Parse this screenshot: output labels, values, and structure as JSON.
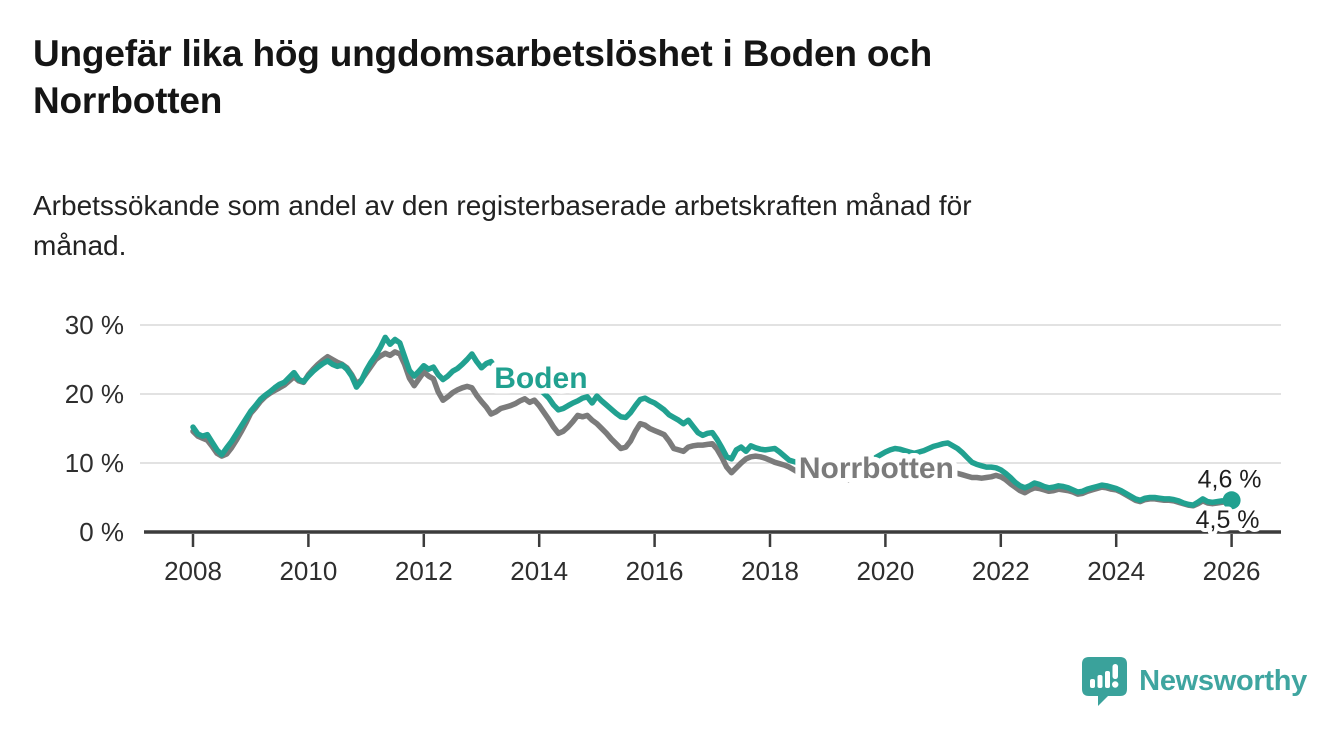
{
  "header": {
    "title_lines": [
      "Ungefär lika hög ungdomsarbetslöshet i Boden och",
      "Norrbotten"
    ],
    "subtitle_lines": [
      "Arbetssökande som andel av den registerbaserade arbetskraften månad för",
      "månad."
    ]
  },
  "chart_data": {
    "type": "line",
    "x_unit": "month",
    "x_start": 2008.0,
    "x_end": 2026.0,
    "xlim": [
      2007.1,
      2026.85
    ],
    "ylim": [
      0,
      31.5
    ],
    "grid": "horizontal-light",
    "x_ticks": [
      2008,
      2010,
      2012,
      2014,
      2016,
      2018,
      2020,
      2022,
      2024,
      2026
    ],
    "x_ticklabels": [
      "2008",
      "2010",
      "2012",
      "2014",
      "2016",
      "2018",
      "2020",
      "2022",
      "2024",
      "2026"
    ],
    "y_ticks": [
      0,
      10,
      20,
      30
    ],
    "y_ticklabels": [
      "0 %",
      "10 %",
      "20 %",
      "30 %"
    ],
    "colors": {
      "boden": "#21a190",
      "norrbotten": "#7b7b7b",
      "axis": "#3c3c3c",
      "gridline": "#d8d8d8",
      "end_label_text": "#1f1f1f"
    },
    "series": [
      {
        "name": "Norrbotten",
        "color": "#7b7b7b",
        "label": {
          "text": "Norrbotten",
          "x": 2018.5,
          "y": 7.8
        },
        "end_label": "4,5 %",
        "end_label_side": "below",
        "end_dot": false,
        "values": [
          14.6,
          13.9,
          13.6,
          13.3,
          12.4,
          11.4,
          11.0,
          11.3,
          12.2,
          13.3,
          14.5,
          15.8,
          17.2,
          18.0,
          18.9,
          19.6,
          20.1,
          20.5,
          20.9,
          21.3,
          21.9,
          22.5,
          21.9,
          21.7,
          22.8,
          23.6,
          24.3,
          24.9,
          25.4,
          25.0,
          24.6,
          24.3,
          23.8,
          22.8,
          21.5,
          22.0,
          23.0,
          24.0,
          25.0,
          25.5,
          25.9,
          25.6,
          26.1,
          25.8,
          24.3,
          22.3,
          21.2,
          22.2,
          23.2,
          22.6,
          22.2,
          20.3,
          19.1,
          19.6,
          20.2,
          20.6,
          20.9,
          21.1,
          20.9,
          19.8,
          18.9,
          18.1,
          17.1,
          17.4,
          17.9,
          18.1,
          18.3,
          18.6,
          19.0,
          19.3,
          18.8,
          19.1,
          18.3,
          17.3,
          16.3,
          15.2,
          14.3,
          14.6,
          15.2,
          16.0,
          16.9,
          16.7,
          16.9,
          16.2,
          15.7,
          15.0,
          14.3,
          13.5,
          12.8,
          12.1,
          12.3,
          13.2,
          14.6,
          15.7,
          15.5,
          15.0,
          14.7,
          14.4,
          14.1,
          13.2,
          12.1,
          11.9,
          11.7,
          12.3,
          12.5,
          12.6,
          12.6,
          12.7,
          12.8,
          12.0,
          10.8,
          9.4,
          8.6,
          9.3,
          10.0,
          10.6,
          10.9,
          11.0,
          10.9,
          10.7,
          10.4,
          10.1,
          9.9,
          9.7,
          9.4,
          9.0,
          8.6,
          8.4,
          8.3,
          8.2,
          8.1,
          8.0,
          7.9,
          7.8,
          7.8,
          7.7,
          7.5,
          7.7,
          7.9,
          7.8,
          7.8,
          7.9,
          8.0,
          8.1,
          8.3,
          8.5,
          8.8,
          9.0,
          8.9,
          8.8,
          8.7,
          8.6,
          8.6,
          8.7,
          8.8,
          8.9,
          9.0,
          8.9,
          8.7,
          8.5,
          8.3,
          8.1,
          7.9,
          7.9,
          7.8,
          7.9,
          8.0,
          8.2,
          8.0,
          7.6,
          7.0,
          6.5,
          6.0,
          5.7,
          6.1,
          6.4,
          6.3,
          6.1,
          5.9,
          6.0,
          6.2,
          6.1,
          6.0,
          5.8,
          5.5,
          5.6,
          5.9,
          6.1,
          6.3,
          6.5,
          6.4,
          6.2,
          6.1,
          5.8,
          5.4,
          5.0,
          4.6,
          4.4,
          4.7,
          4.8,
          4.8,
          4.7,
          4.6,
          4.6,
          4.5,
          4.3,
          4.1,
          3.9,
          3.8,
          4.1,
          4.5,
          4.2,
          4.1,
          4.2,
          4.3,
          4.4,
          4.5
        ]
      },
      {
        "name": "Boden",
        "color": "#21a190",
        "label": {
          "text": "Boden",
          "x": 2013.22,
          "y": 20.9
        },
        "end_label": "4,6 %",
        "end_label_side": "above",
        "end_dot": true,
        "values": [
          15.2,
          14.2,
          13.9,
          14.1,
          13.0,
          11.9,
          11.2,
          12.2,
          13.1,
          14.2,
          15.3,
          16.4,
          17.5,
          18.3,
          19.2,
          19.8,
          20.3,
          20.9,
          21.4,
          21.7,
          22.4,
          23.1,
          22.1,
          21.8,
          22.6,
          23.3,
          23.9,
          24.4,
          24.8,
          24.3,
          24.0,
          24.2,
          23.6,
          22.6,
          21.0,
          21.9,
          23.4,
          24.6,
          25.6,
          26.8,
          28.2,
          27.2,
          27.9,
          27.4,
          25.4,
          23.4,
          22.6,
          23.3,
          24.1,
          23.6,
          23.9,
          22.8,
          22.1,
          22.6,
          23.3,
          23.7,
          24.3,
          25.0,
          25.8,
          24.7,
          23.8,
          24.4,
          24.7,
          23.6,
          22.4,
          21.6,
          21.0,
          21.5,
          21.9,
          22.2,
          21.8,
          21.2,
          20.8,
          20.1,
          19.4,
          18.4,
          17.7,
          17.9,
          18.3,
          18.7,
          19.0,
          19.4,
          19.6,
          18.7,
          19.7,
          19.0,
          18.4,
          17.8,
          17.2,
          16.7,
          16.6,
          17.3,
          18.3,
          19.2,
          19.4,
          19.0,
          18.7,
          18.2,
          17.7,
          17.0,
          16.6,
          16.2,
          15.7,
          16.2,
          15.3,
          14.4,
          14.0,
          14.3,
          14.4,
          13.4,
          12.2,
          10.9,
          10.6,
          11.9,
          12.3,
          11.7,
          12.5,
          12.2,
          12.0,
          11.9,
          12.0,
          12.1,
          11.6,
          11.0,
          10.4,
          10.2,
          10.0,
          10.3,
          10.5,
          10.6,
          10.4,
          10.2,
          10.4,
          10.2,
          9.9,
          9.6,
          9.3,
          9.6,
          9.9,
          10.1,
          10.3,
          10.5,
          10.8,
          11.2,
          11.6,
          11.9,
          12.1,
          12.0,
          11.8,
          11.6,
          11.4,
          11.6,
          11.8,
          12.1,
          12.4,
          12.6,
          12.8,
          12.9,
          12.5,
          12.1,
          11.5,
          10.8,
          10.1,
          9.8,
          9.6,
          9.4,
          9.4,
          9.3,
          9.0,
          8.5,
          7.9,
          7.2,
          6.7,
          6.4,
          6.7,
          7.1,
          6.9,
          6.6,
          6.4,
          6.5,
          6.7,
          6.6,
          6.4,
          6.1,
          5.8,
          5.9,
          6.2,
          6.4,
          6.6,
          6.8,
          6.7,
          6.5,
          6.3,
          6.0,
          5.6,
          5.2,
          4.8,
          4.6,
          4.9,
          5.0,
          5.0,
          4.9,
          4.8,
          4.8,
          4.7,
          4.5,
          4.2,
          4.0,
          3.9,
          4.3,
          4.8,
          4.4,
          4.3,
          4.4,
          4.5,
          4.5,
          4.6
        ]
      }
    ]
  },
  "footer": {
    "brand": "Newsworthy"
  }
}
